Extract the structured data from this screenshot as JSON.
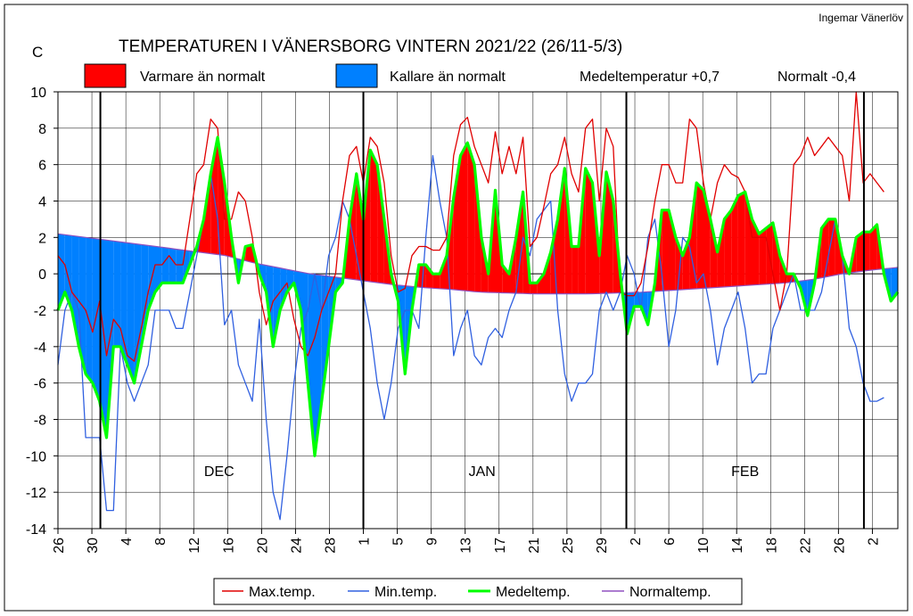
{
  "chart_data": {
    "type": "area",
    "title": "TEMPERATUREN I VÄNERSBORG  VINTERN 2021/22 (26/11-5/3)",
    "author": "Ingemar Vänerlöv",
    "unit_label": "C",
    "ylim": [
      -14,
      10
    ],
    "yticks": [
      "10",
      "8",
      "6",
      "4",
      "2",
      "0",
      "-2",
      "-4",
      "-6",
      "-8",
      "-10",
      "-12",
      "-14"
    ],
    "xticks": [
      "26",
      "30",
      "4",
      "8",
      "12",
      "16",
      "20",
      "24",
      "28",
      "1",
      "5",
      "9",
      "13",
      "17",
      "21",
      "25",
      "29",
      "2",
      "6",
      "10",
      "14",
      "18",
      "22",
      "26",
      "2"
    ],
    "months": [
      "DEC",
      "JAN",
      "FEB"
    ],
    "legend_top": [
      "Varmare än normalt",
      "Kallare än normalt"
    ],
    "stats": {
      "mean_label": "Medeltemperatur +0,7",
      "normal_label": "Normalt -0,4"
    },
    "legend_bottom": [
      "Max.temp.",
      "Min.temp.",
      "Medeltemp.",
      "Normaltemp."
    ],
    "colors": {
      "warm": "#ff0000",
      "cold": "#0080ff",
      "max": "#e00000",
      "min": "#3060e0",
      "mean": "#00ff00",
      "normal": "#9050c0"
    },
    "days_start": "2021-11-26",
    "days_end": "2022-03-05",
    "series": [
      {
        "name": "Medeltemp.",
        "values": [
          -2,
          -1,
          -2,
          -4,
          -5.5,
          -6,
          -7,
          -9,
          -4,
          -4,
          -5,
          -6,
          -4,
          -2,
          -1,
          -0.5,
          -0.5,
          -0.5,
          -0.5,
          0.5,
          1.5,
          3,
          5.5,
          7.5,
          5,
          2,
          -0.5,
          1.5,
          1.6,
          0,
          -1,
          -4,
          -2,
          -1,
          -0.5,
          -2,
          -6,
          -10,
          -7,
          -4,
          -1,
          -0.5,
          3,
          5.5,
          3,
          6.8,
          6,
          3,
          0,
          -1.5,
          -5.5,
          -2,
          0.5,
          0.5,
          0,
          0,
          1,
          4.2,
          6.5,
          7.2,
          6,
          2,
          0,
          4.6,
          0.5,
          0,
          2,
          4.5,
          -0.5,
          -0.5,
          0,
          1.2,
          3,
          5.8,
          1.5,
          1.5,
          5.8,
          5,
          1,
          5.6,
          4,
          0,
          -3.3,
          -1.8,
          -1.8,
          -2.8,
          -0.5,
          3.5,
          3.5,
          2,
          1,
          2,
          5,
          4.6,
          3,
          1.2,
          3,
          3.5,
          4.3,
          4.5,
          3,
          2.2,
          2.5,
          2.8,
          1,
          0,
          0,
          -0.8,
          -2.3,
          -0.5,
          2.5,
          3,
          3,
          1,
          0,
          2,
          2.3,
          2.3,
          2.7,
          0,
          -1.5,
          -1
        ]
      },
      {
        "name": "Max.temp.",
        "values": [
          1,
          0.5,
          -1,
          -1.5,
          -2,
          -3.2,
          -1.5,
          -4.5,
          -2.5,
          -3,
          -4.5,
          -4.8,
          -3,
          -1,
          0.5,
          0.5,
          1,
          0.5,
          0.5,
          3,
          5.5,
          6,
          8.5,
          8,
          3,
          3,
          4.5,
          4,
          2,
          -1,
          -2.8,
          -1.5,
          -1,
          -0.5,
          -2.5,
          -4,
          -4.5,
          -3.5,
          -2,
          -1,
          0,
          4,
          6.5,
          7,
          5,
          7.5,
          7,
          5,
          1,
          -1,
          -0.8,
          1,
          1.5,
          1.5,
          1.3,
          1.3,
          2,
          6.5,
          8.2,
          8.6,
          7,
          6,
          5,
          7.8,
          5.5,
          7,
          5.5,
          7.5,
          1.5,
          2,
          3.7,
          5.5,
          6,
          7.5,
          5.5,
          4.5,
          8,
          8.5,
          4,
          8,
          7,
          -1,
          -1.2,
          -1.2,
          -0.5,
          1.5,
          4,
          6,
          6,
          5,
          5,
          8.5,
          8,
          5,
          3,
          5,
          6,
          5.5,
          5.3,
          4.5,
          2,
          2,
          2,
          0,
          -2,
          0,
          6,
          6.5,
          7.5,
          6.5,
          7,
          7.5,
          7,
          6.5,
          4,
          10,
          5,
          5.5,
          5,
          4.5
        ]
      },
      {
        "name": "Min.temp.",
        "values": [
          -5,
          -2,
          -1,
          -2,
          -9,
          -9,
          -9,
          -13,
          -13,
          -4,
          -6,
          -7,
          -6,
          -5,
          -2,
          -2,
          -2,
          -3,
          -3,
          -1,
          1,
          3,
          5.5,
          3,
          -2.8,
          -2,
          -5,
          -6,
          -7,
          -2.5,
          -8,
          -12,
          -13.5,
          -10,
          -6,
          -3,
          -2,
          0,
          -2,
          1,
          2,
          4,
          3,
          1,
          -1,
          -3,
          -6,
          -8,
          -6,
          -3,
          -2,
          -2,
          -3,
          2,
          6.5,
          4,
          2,
          -4.5,
          -3,
          -2,
          -4.5,
          -5,
          -3.5,
          -3,
          -3.5,
          -2,
          -1,
          2,
          1,
          3,
          3.5,
          4,
          -2,
          -5.5,
          -7,
          -6,
          -6,
          -5.5,
          -2,
          -1,
          -2,
          -1,
          1,
          0,
          -2,
          2,
          3,
          0,
          -4,
          -2,
          2,
          1.5,
          -0.5,
          0,
          -2,
          -5,
          -3,
          -2,
          -1,
          -3,
          -6,
          -5.5,
          -5.5,
          -3,
          -2,
          -1,
          0,
          -2,
          -2,
          -2,
          -1,
          1,
          3,
          1,
          -3,
          -4,
          -6,
          -7,
          -7,
          -6.8
        ]
      },
      {
        "name": "Normaltemp.",
        "values": [
          2.2,
          2,
          1.8,
          1.6,
          1.4,
          1.2,
          1,
          0.6,
          0.3,
          0,
          -0.2,
          -0.4,
          -0.6,
          -0.75,
          -0.85,
          -1,
          -1.05,
          -1.1,
          -1.1,
          -1.1,
          -1.05,
          -1,
          -0.9,
          -0.8,
          -0.7,
          -0.6,
          -0.5,
          -0.3,
          0,
          0.2,
          0.35
        ]
      }
    ]
  }
}
